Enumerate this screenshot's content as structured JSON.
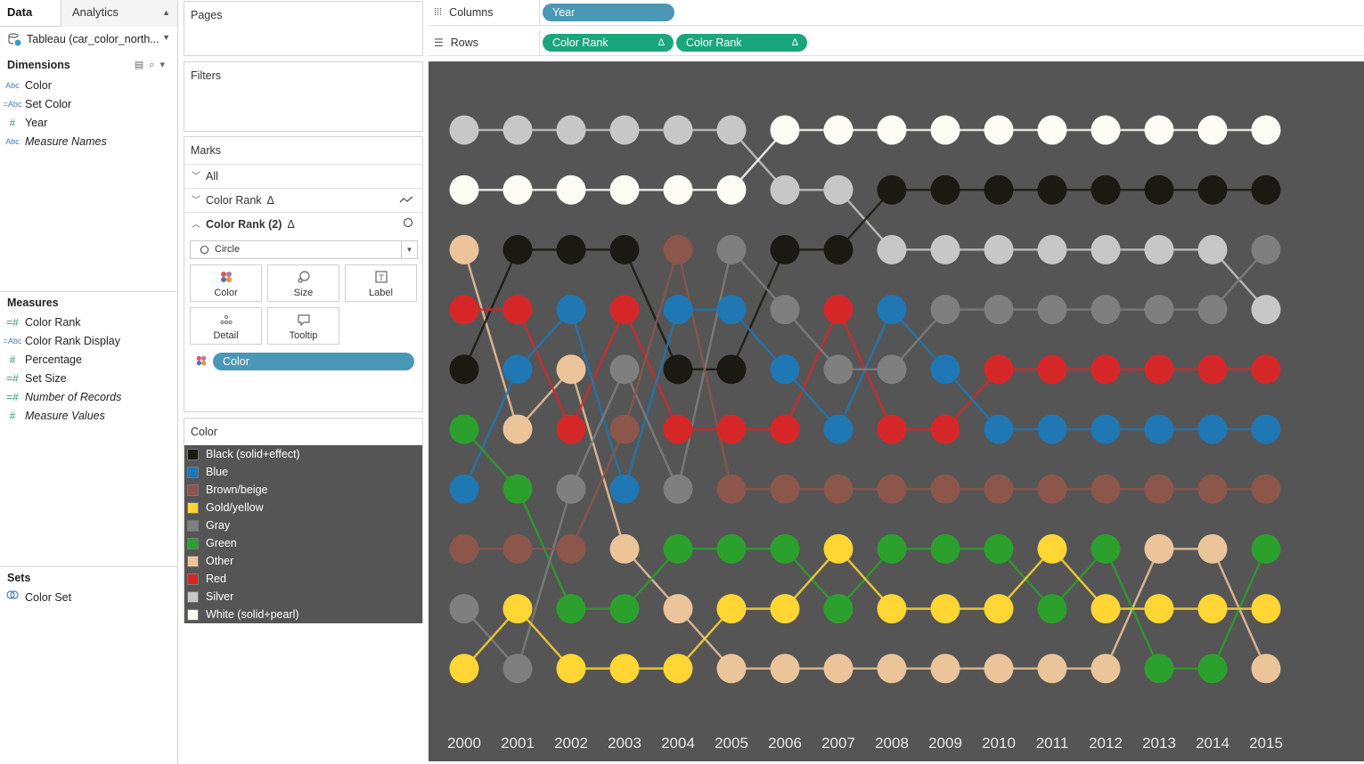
{
  "data_pane": {
    "tabs": [
      "Data",
      "Analytics"
    ],
    "tab_switch_icon": "up-down-arrows-icon",
    "datasource": "Tableau (car_color_north...",
    "dimensions_title": "Dimensions",
    "dimensions": [
      {
        "type": "Abc",
        "label": "Color",
        "italic": false
      },
      {
        "type": "=Abc",
        "label": "Set Color",
        "italic": false
      },
      {
        "type": "#",
        "label": "Year",
        "italic": false
      },
      {
        "type": "Abc",
        "label": "Measure Names",
        "italic": true
      }
    ],
    "measures_title": "Measures",
    "measures": [
      {
        "type": "=#",
        "label": "Color Rank",
        "italic": false
      },
      {
        "type": "=Abc",
        "label": "Color Rank Display",
        "italic": false
      },
      {
        "type": "#",
        "label": "Percentage",
        "italic": false
      },
      {
        "type": "=#",
        "label": "Set Size",
        "italic": false
      },
      {
        "type": "=#",
        "label": "Number of Records",
        "italic": true
      },
      {
        "type": "#",
        "label": "Measure Values",
        "italic": true
      }
    ],
    "sets_title": "Sets",
    "sets": [
      {
        "label": "Color Set"
      }
    ]
  },
  "cards": {
    "pages": "Pages",
    "filters": "Filters",
    "marks": {
      "title": "Marks",
      "all": "All",
      "layer1": "Color Rank",
      "layer2": "Color Rank (2)",
      "mark_type": "Circle",
      "buttons": [
        "Color",
        "Size",
        "Label",
        "Detail",
        "Tooltip"
      ],
      "color_pill": "Color"
    },
    "legend": {
      "title": "Color",
      "items": [
        {
          "label": "Black (solid+effect)",
          "color": "#1a1a12"
        },
        {
          "label": "Blue",
          "color": "#1f77b4"
        },
        {
          "label": "Brown/beige",
          "color": "#8c564b"
        },
        {
          "label": "Gold/yellow",
          "color": "#ffd633"
        },
        {
          "label": "Gray",
          "color": "#7f7f7f"
        },
        {
          "label": "Green",
          "color": "#2ca02c"
        },
        {
          "label": "Other",
          "color": "#ebc49a"
        },
        {
          "label": "Red",
          "color": "#d62728"
        },
        {
          "label": "Silver",
          "color": "#c7c7c7"
        },
        {
          "label": "White (solid+pearl)",
          "color": "#fdfdf6"
        }
      ]
    }
  },
  "shelves": {
    "columns_label": "Columns",
    "columns_pill": "Year",
    "rows_label": "Rows",
    "rows_pills": [
      "Color Rank",
      "Color Rank"
    ]
  },
  "chart_data": {
    "type": "line",
    "mark": "circle",
    "background": "#555555",
    "x": [
      "2000",
      "2001",
      "2002",
      "2003",
      "2004",
      "2005",
      "2006",
      "2007",
      "2008",
      "2009",
      "2010",
      "2011",
      "2012",
      "2013",
      "2014",
      "2015"
    ],
    "ylabel": "",
    "yreversed": true,
    "ylim": [
      1,
      10
    ],
    "grid": false,
    "legend": "left-panel",
    "series": [
      {
        "name": "Silver",
        "color": "#c7c7c7",
        "values": [
          1,
          1,
          1,
          1,
          1,
          1,
          2,
          2,
          3,
          3,
          3,
          3,
          3,
          3,
          3,
          4
        ]
      },
      {
        "name": "White (solid+pearl)",
        "color": "#fdfdf6",
        "values": [
          2,
          2,
          2,
          2,
          2,
          2,
          1,
          1,
          1,
          1,
          1,
          1,
          1,
          1,
          1,
          1
        ]
      },
      {
        "name": "Other",
        "color": "#ebc49a",
        "values": [
          3,
          6,
          5,
          8,
          9,
          10,
          10,
          10,
          10,
          10,
          10,
          10,
          10,
          8,
          8,
          10
        ]
      },
      {
        "name": "Black (solid+effect)",
        "color": "#1a1a12",
        "values": [
          5,
          3,
          3,
          3,
          5,
          5,
          3,
          3,
          2,
          2,
          2,
          2,
          2,
          2,
          2,
          2
        ]
      },
      {
        "name": "Red",
        "color": "#d62728",
        "values": [
          4,
          4,
          6,
          4,
          6,
          6,
          6,
          4,
          6,
          6,
          5,
          5,
          5,
          5,
          5,
          5
        ]
      },
      {
        "name": "Blue",
        "color": "#1f77b4",
        "values": [
          7,
          5,
          4,
          7,
          4,
          4,
          5,
          6,
          4,
          5,
          6,
          6,
          6,
          6,
          6,
          6
        ]
      },
      {
        "name": "Green",
        "color": "#2ca02c",
        "values": [
          6,
          7,
          9,
          9,
          8,
          8,
          8,
          9,
          8,
          8,
          8,
          9,
          8,
          10,
          10,
          8
        ]
      },
      {
        "name": "Gray",
        "color": "#7f7f7f",
        "values": [
          9,
          10,
          7,
          5,
          7,
          3,
          4,
          5,
          5,
          4,
          4,
          4,
          4,
          4,
          4,
          3
        ]
      },
      {
        "name": "Brown/beige",
        "color": "#8c564b",
        "values": [
          8,
          8,
          8,
          6,
          3,
          7,
          7,
          7,
          7,
          7,
          7,
          7,
          7,
          7,
          7,
          7
        ]
      },
      {
        "name": "Gold/yellow",
        "color": "#ffd633",
        "values": [
          10,
          9,
          10,
          10,
          10,
          9,
          9,
          8,
          9,
          9,
          9,
          8,
          9,
          9,
          9,
          9
        ]
      }
    ]
  }
}
